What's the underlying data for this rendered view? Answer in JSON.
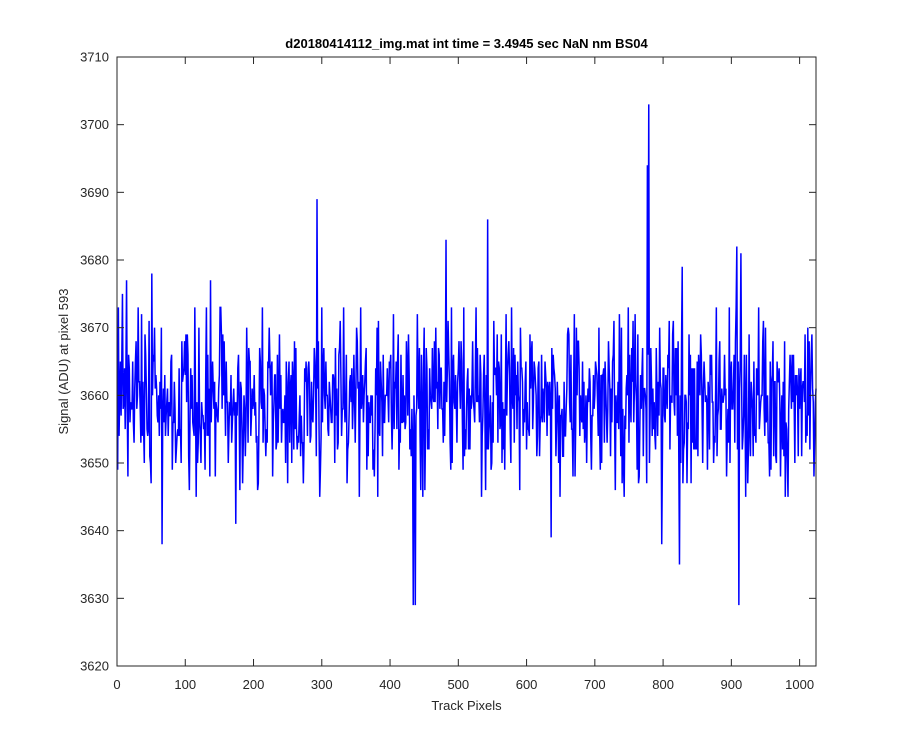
{
  "chart_data": {
    "type": "line",
    "title": "d20180414112_img.mat int time = 3.4945 sec  NaN nm BS04",
    "xlabel": "Track Pixels",
    "ylabel": "Signal (ADU) at pixel 593",
    "xlim": [
      0,
      1024
    ],
    "ylim": [
      3620,
      3710
    ],
    "xticks": [
      0,
      100,
      200,
      300,
      400,
      500,
      600,
      700,
      800,
      900,
      1000
    ],
    "yticks": [
      3620,
      3630,
      3640,
      3650,
      3660,
      3670,
      3680,
      3690,
      3700,
      3710
    ],
    "grid": false,
    "line_color": "#0000ff",
    "baseline_mean": 3659,
    "noise_range": [
      3645,
      3673
    ],
    "notable_points": [
      {
        "x": 7,
        "y": 3675
      },
      {
        "x": 13,
        "y": 3677
      },
      {
        "x": 50,
        "y": 3678
      },
      {
        "x": 65,
        "y": 3638
      },
      {
        "x": 136,
        "y": 3677
      },
      {
        "x": 173,
        "y": 3641
      },
      {
        "x": 292,
        "y": 3689
      },
      {
        "x": 433,
        "y": 3629
      },
      {
        "x": 436,
        "y": 3629
      },
      {
        "x": 481,
        "y": 3683
      },
      {
        "x": 542,
        "y": 3686
      },
      {
        "x": 635,
        "y": 3639
      },
      {
        "x": 776,
        "y": 3694
      },
      {
        "x": 778,
        "y": 3703
      },
      {
        "x": 797,
        "y": 3638
      },
      {
        "x": 823,
        "y": 3635
      },
      {
        "x": 827,
        "y": 3679
      },
      {
        "x": 907,
        "y": 3682
      },
      {
        "x": 910,
        "y": 3629
      },
      {
        "x": 913,
        "y": 3681
      },
      {
        "x": 1020,
        "y": 3648
      }
    ],
    "n_points": 1024
  }
}
